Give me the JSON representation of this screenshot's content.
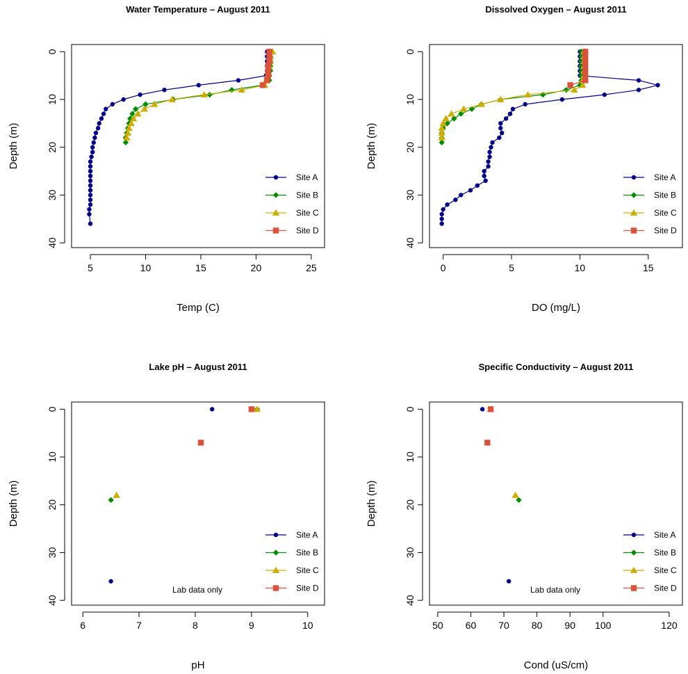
{
  "chart_data": [
    {
      "type": "line",
      "title": "Water Temperature – August 2011",
      "xlabel": "Temp (C)",
      "ylabel": "Depth (m)",
      "xlim": [
        3.3,
        26.2
      ],
      "ylim": [
        41,
        -1.5
      ],
      "x_ticks": [
        5,
        10,
        15,
        20,
        25
      ],
      "y_ticks": [
        0,
        10,
        20,
        30,
        40
      ],
      "legend_position": "bottom-right",
      "note": "",
      "series": [
        {
          "name": "Site A",
          "color": "#00008B",
          "marker": "circle",
          "lines": true,
          "x": [
            21.0,
            21.0,
            21.0,
            21.0,
            21.0,
            20.9,
            18.4,
            14.8,
            11.7,
            9.5,
            8.0,
            7.0,
            6.4,
            6.2,
            6.0,
            5.8,
            5.7,
            5.5,
            5.4,
            5.3,
            5.2,
            5.2,
            5.1,
            5.0,
            5.0,
            5.0,
            5.0,
            5.0,
            5.0,
            5.0,
            5.0,
            5.0,
            5.0,
            4.9,
            4.9,
            5.0
          ],
          "y": [
            0,
            1,
            2,
            3,
            4,
            5,
            6,
            7,
            8,
            9,
            10,
            11,
            12,
            13,
            14,
            15,
            16,
            17,
            18,
            19,
            20,
            21,
            22,
            23,
            24,
            25,
            26,
            27,
            28,
            29,
            30,
            31,
            32,
            33,
            34,
            36
          ]
        },
        {
          "name": "Site B",
          "color": "#008B00",
          "marker": "diamond",
          "lines": true,
          "x": [
            21.3,
            21.3,
            21.3,
            21.3,
            21.3,
            21.2,
            21.2,
            20.6,
            17.8,
            15.8,
            12.5,
            10.0,
            9.1,
            8.8,
            8.6,
            8.5,
            8.4,
            8.3,
            8.2,
            8.2
          ],
          "y": [
            0,
            1,
            2,
            3,
            4,
            5,
            6,
            7,
            8,
            9,
            10,
            11,
            12,
            13,
            14,
            15,
            16,
            17,
            18,
            19
          ]
        },
        {
          "name": "Site C",
          "color": "#CDAD00",
          "marker": "triangle",
          "lines": true,
          "x": [
            21.5,
            21.3,
            21.3,
            21.2,
            21.1,
            21.0,
            20.9,
            20.8,
            18.7,
            15.3,
            12.4,
            10.8,
            9.9,
            9.3,
            8.9,
            8.7,
            8.5,
            8.4,
            8.3
          ],
          "y": [
            0,
            1,
            2,
            3,
            4,
            5,
            6,
            7,
            8,
            9,
            10,
            11,
            12,
            13,
            14,
            15,
            16,
            17,
            18
          ]
        },
        {
          "name": "Site D",
          "color": "#D9533A",
          "marker": "square",
          "lines": true,
          "x": [
            21.2,
            21.2,
            21.2,
            21.1,
            21.1,
            21.1,
            21.0,
            20.6
          ],
          "y": [
            0,
            1,
            2,
            3,
            4,
            5,
            6,
            7
          ]
        }
      ]
    },
    {
      "type": "line",
      "title": "Dissolved Oxygen – August 2011",
      "xlabel": "DO (mg/L)",
      "ylabel": "Depth (m)",
      "xlim": [
        -1.0,
        17.5
      ],
      "ylim": [
        41,
        -1.5
      ],
      "x_ticks": [
        0,
        5,
        10,
        15
      ],
      "y_ticks": [
        0,
        10,
        20,
        30,
        40
      ],
      "legend_position": "bottom-right",
      "note": "",
      "series": [
        {
          "name": "Site A",
          "color": "#00008B",
          "marker": "circle",
          "lines": true,
          "x": [
            10.0,
            10.0,
            10.0,
            10.0,
            10.0,
            10.0,
            14.3,
            15.7,
            14.3,
            11.8,
            8.7,
            6.0,
            5.1,
            4.9,
            4.6,
            4.2,
            4.2,
            4.3,
            4.1,
            3.6,
            3.5,
            3.4,
            3.4,
            3.3,
            3.3,
            3.0,
            3.0,
            3.1,
            2.5,
            2.0,
            1.3,
            0.9,
            0.3,
            0.0,
            -0.1,
            -0.1,
            -0.1
          ],
          "y": [
            0,
            1,
            2,
            3,
            4,
            5,
            6,
            7,
            8,
            9,
            10,
            11,
            12,
            13,
            14,
            15,
            16,
            17,
            18,
            19,
            20,
            21,
            22,
            23,
            24,
            25,
            26,
            27,
            28,
            29,
            30,
            31,
            32,
            33,
            34,
            35,
            36
          ]
        },
        {
          "name": "Site B",
          "color": "#008B00",
          "marker": "diamond",
          "lines": true,
          "x": [
            10.1,
            10.1,
            10.1,
            10.1,
            10.1,
            10.1,
            10.1,
            10.0,
            9.0,
            7.3,
            4.2,
            2.8,
            2.1,
            1.3,
            0.8,
            0.3,
            0.0,
            -0.1,
            -0.1,
            -0.1
          ],
          "y": [
            0,
            1,
            2,
            3,
            4,
            5,
            6,
            7,
            8,
            9,
            10,
            11,
            12,
            13,
            14,
            15,
            16,
            17,
            18,
            19
          ]
        },
        {
          "name": "Site C",
          "color": "#CDAD00",
          "marker": "triangle",
          "lines": true,
          "x": [
            10.3,
            10.3,
            10.3,
            10.3,
            10.3,
            10.3,
            10.2,
            10.2,
            9.6,
            6.2,
            4.2,
            2.8,
            1.5,
            0.6,
            0.2,
            0.0,
            -0.1,
            -0.1,
            -0.1
          ],
          "y": [
            0,
            1,
            2,
            3,
            4,
            5,
            6,
            7,
            8,
            9,
            10,
            11,
            12,
            13,
            14,
            15,
            16,
            17,
            18
          ]
        },
        {
          "name": "Site D",
          "color": "#D9533A",
          "marker": "square",
          "lines": true,
          "x": [
            10.4,
            10.4,
            10.4,
            10.4,
            10.4,
            10.4,
            10.4,
            9.3
          ],
          "y": [
            0,
            1,
            2,
            3,
            4,
            5,
            6,
            7
          ]
        }
      ]
    },
    {
      "type": "scatter",
      "title": "Lake pH – August 2011",
      "xlabel": "pH",
      "ylabel": "Depth (m)",
      "xlim": [
        5.8,
        10.3
      ],
      "ylim": [
        41,
        -1.5
      ],
      "x_ticks": [
        6,
        7,
        8,
        9,
        10
      ],
      "y_ticks": [
        0,
        10,
        20,
        30,
        40
      ],
      "legend_position": "bottom-right",
      "note": "Lab data only",
      "series": [
        {
          "name": "Site A",
          "color": "#00008B",
          "marker": "circle",
          "lines": false,
          "x": [
            8.3,
            6.5
          ],
          "y": [
            0,
            36
          ]
        },
        {
          "name": "Site B",
          "color": "#008B00",
          "marker": "diamond",
          "lines": false,
          "x": [
            9.1,
            6.5
          ],
          "y": [
            0,
            19
          ]
        },
        {
          "name": "Site C",
          "color": "#CDAD00",
          "marker": "triangle",
          "lines": false,
          "x": [
            9.1,
            6.6
          ],
          "y": [
            0,
            18
          ]
        },
        {
          "name": "Site D",
          "color": "#D9533A",
          "marker": "square",
          "lines": false,
          "x": [
            9.0,
            8.1
          ],
          "y": [
            0,
            7
          ]
        }
      ]
    },
    {
      "type": "scatter",
      "title": "Specific Conductivity – August 2011",
      "xlabel": "Cond (uS/cm)",
      "ylabel": "Depth (m)",
      "xlim": [
        47.5,
        124
      ],
      "ylim": [
        41,
        -1.5
      ],
      "x_ticks": [
        50,
        60,
        70,
        80,
        90,
        100,
        120
      ],
      "y_ticks": [
        0,
        10,
        20,
        30,
        40
      ],
      "legend_position": "bottom-right",
      "note": "Lab data only",
      "series": [
        {
          "name": "Site A",
          "color": "#00008B",
          "marker": "circle",
          "lines": false,
          "x": [
            63.5,
            71.5
          ],
          "y": [
            0,
            36
          ]
        },
        {
          "name": "Site B",
          "color": "#008B00",
          "marker": "diamond",
          "lines": false,
          "x": [
            66.0,
            74.5
          ],
          "y": [
            0,
            19
          ]
        },
        {
          "name": "Site C",
          "color": "#CDAD00",
          "marker": "triangle",
          "lines": false,
          "x": [
            66.0,
            73.5
          ],
          "y": [
            0,
            18
          ]
        },
        {
          "name": "Site D",
          "color": "#D9533A",
          "marker": "square",
          "lines": false,
          "x": [
            66.0,
            65.0
          ],
          "y": [
            0,
            7
          ]
        }
      ]
    }
  ]
}
